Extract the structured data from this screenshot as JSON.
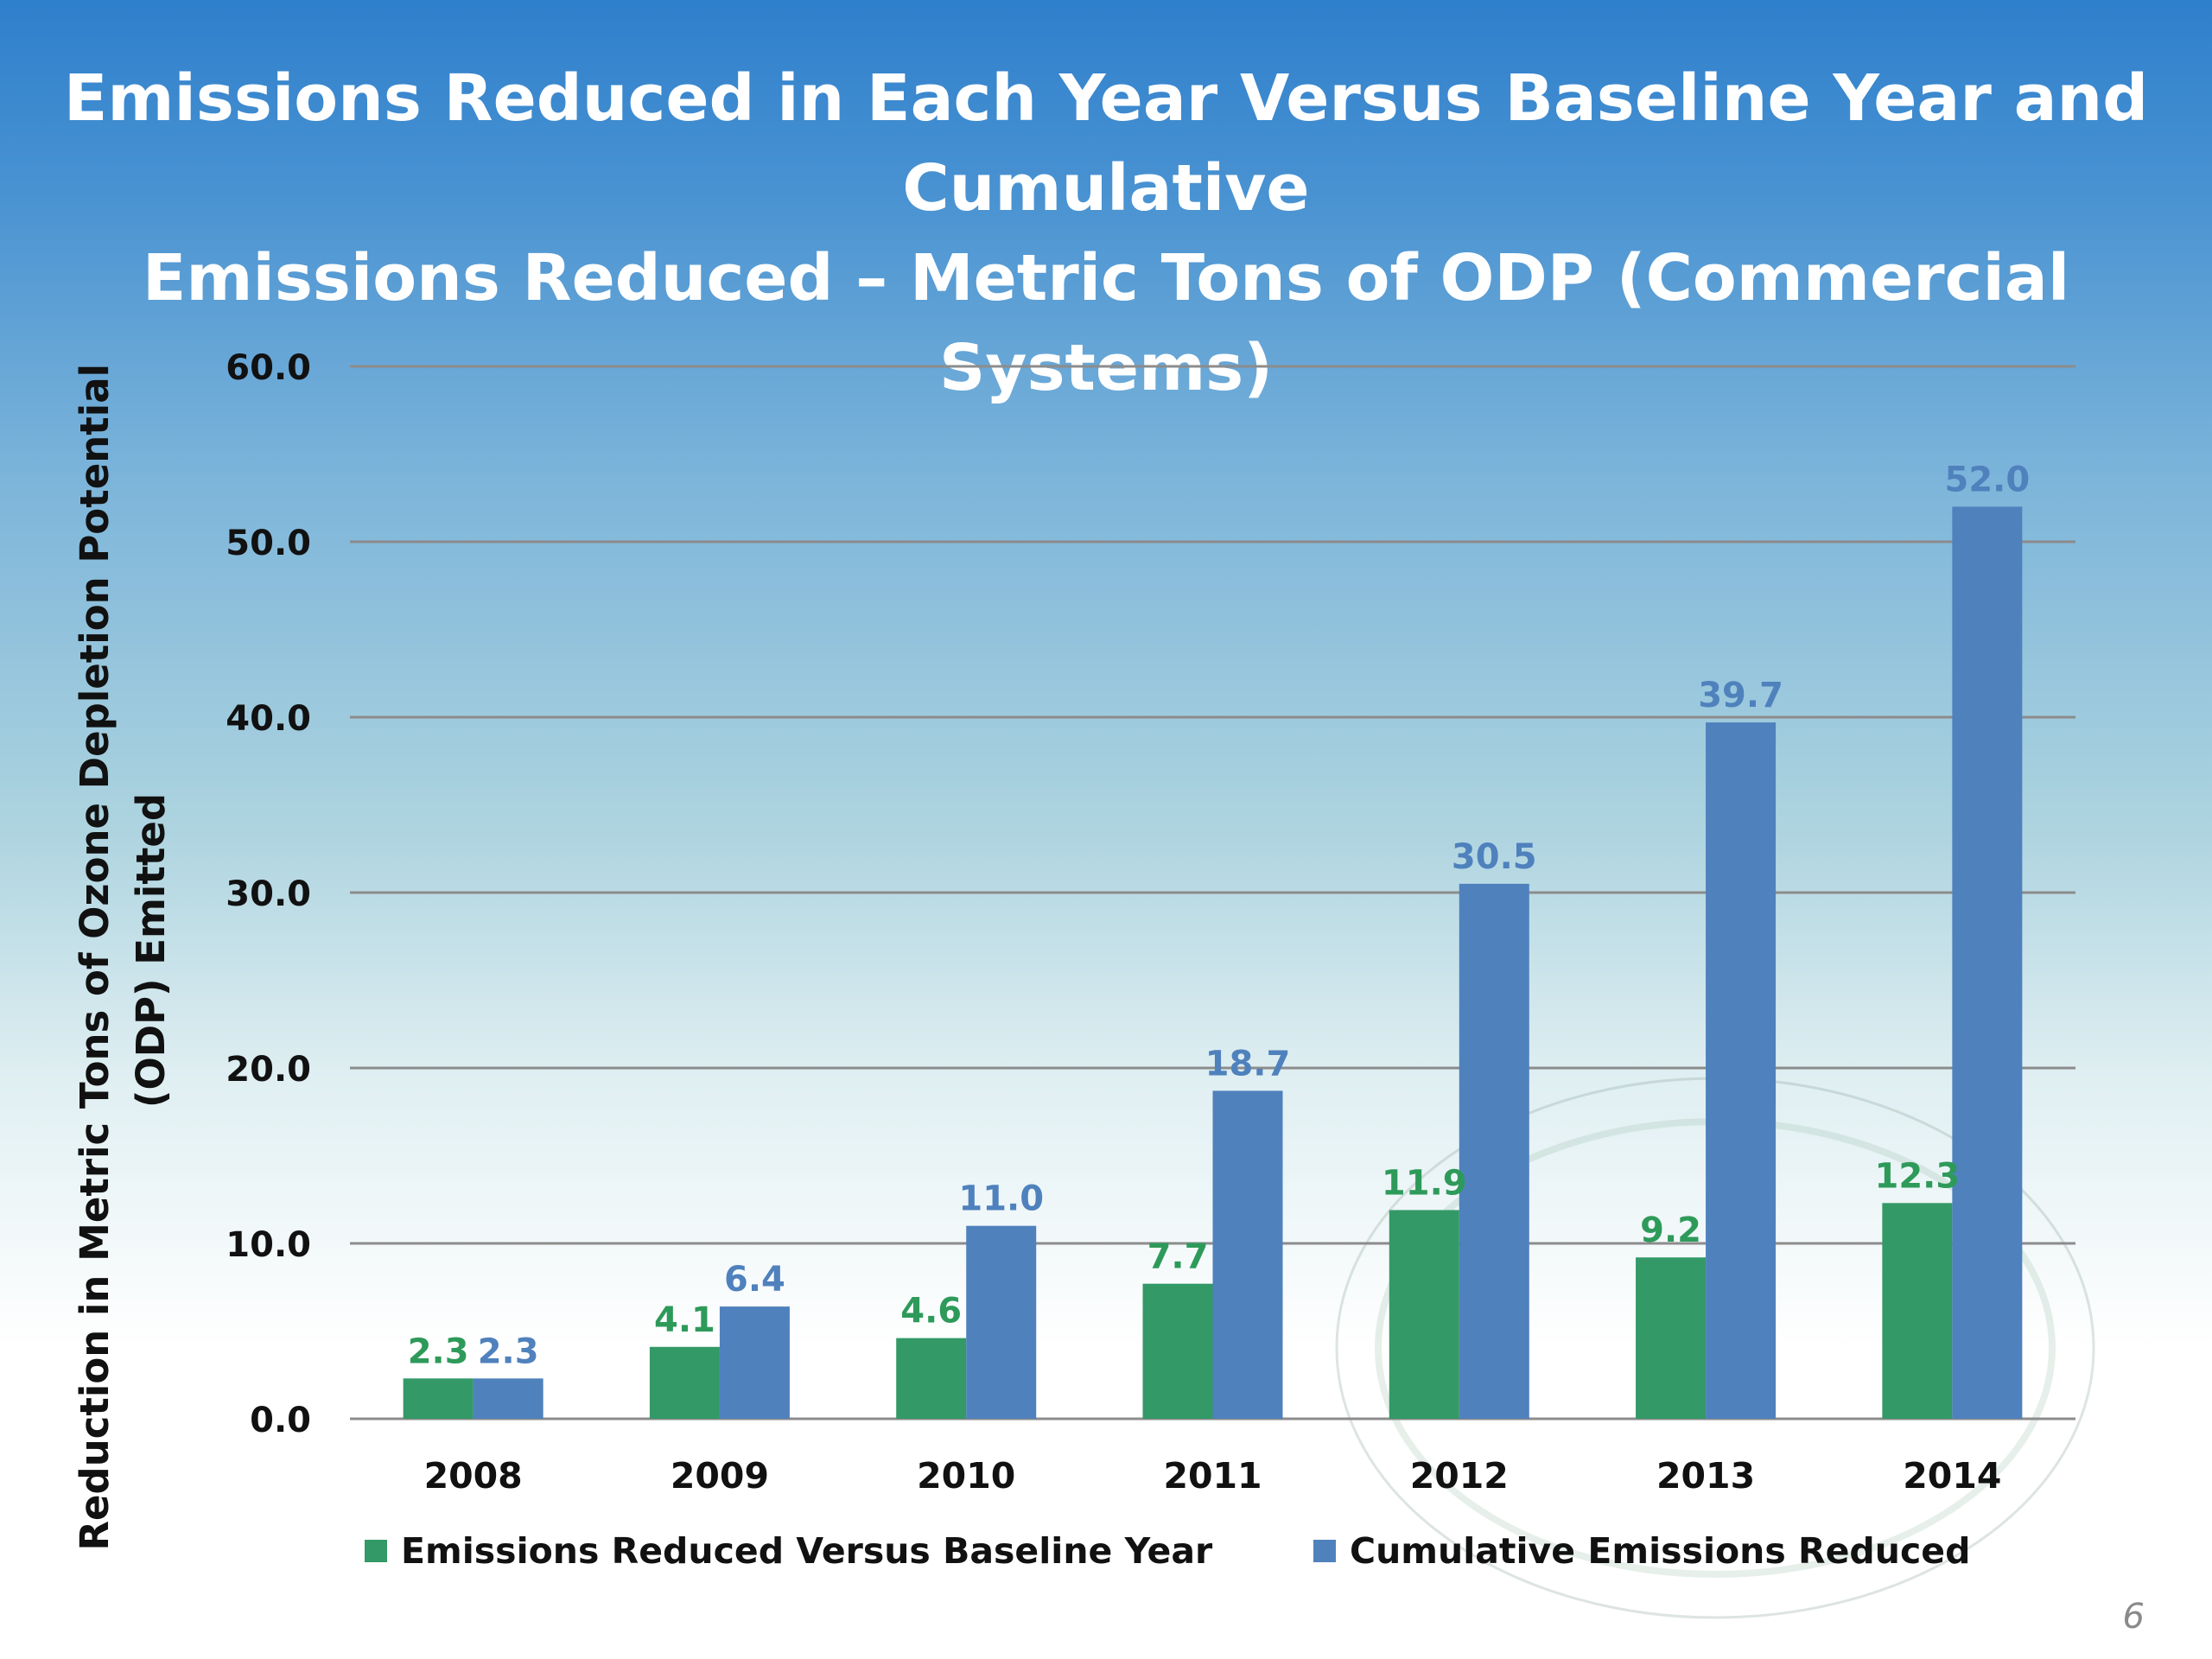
{
  "slide": {
    "page_number": "6",
    "colors": {
      "series_green": "#339966",
      "series_blue": "#4f81bd",
      "label_green": "#2e9a5a",
      "label_blue": "#4f81bd"
    }
  },
  "chart_data": {
    "type": "bar",
    "title_lines": [
      "Emissions Reduced in Each Year Versus Baseline Year and Cumulative",
      "Emissions Reduced – Metric Tons of ODP (Commercial Systems)"
    ],
    "ylabel_lines": [
      "Reduction in Metric Tons of Ozone Depletion Potential",
      "(ODP)  Emitted"
    ],
    "xlabel": "",
    "categories": [
      "2008",
      "2009",
      "2010",
      "2011",
      "2012",
      "2013",
      "2014"
    ],
    "series": [
      {
        "name": "Emissions Reduced Versus Baseline Year",
        "values": [
          2.3,
          4.1,
          4.6,
          7.7,
          11.9,
          9.2,
          12.3
        ]
      },
      {
        "name": "Cumulative Emissions Reduced",
        "values": [
          2.3,
          6.4,
          11.0,
          18.7,
          30.5,
          39.7,
          52.0
        ]
      }
    ],
    "ylim": [
      0,
      60
    ],
    "yticks": [
      "0.0",
      "10.0",
      "20.0",
      "30.0",
      "40.0",
      "50.0",
      "60.0"
    ],
    "grid": true,
    "legend_position": "bottom"
  }
}
